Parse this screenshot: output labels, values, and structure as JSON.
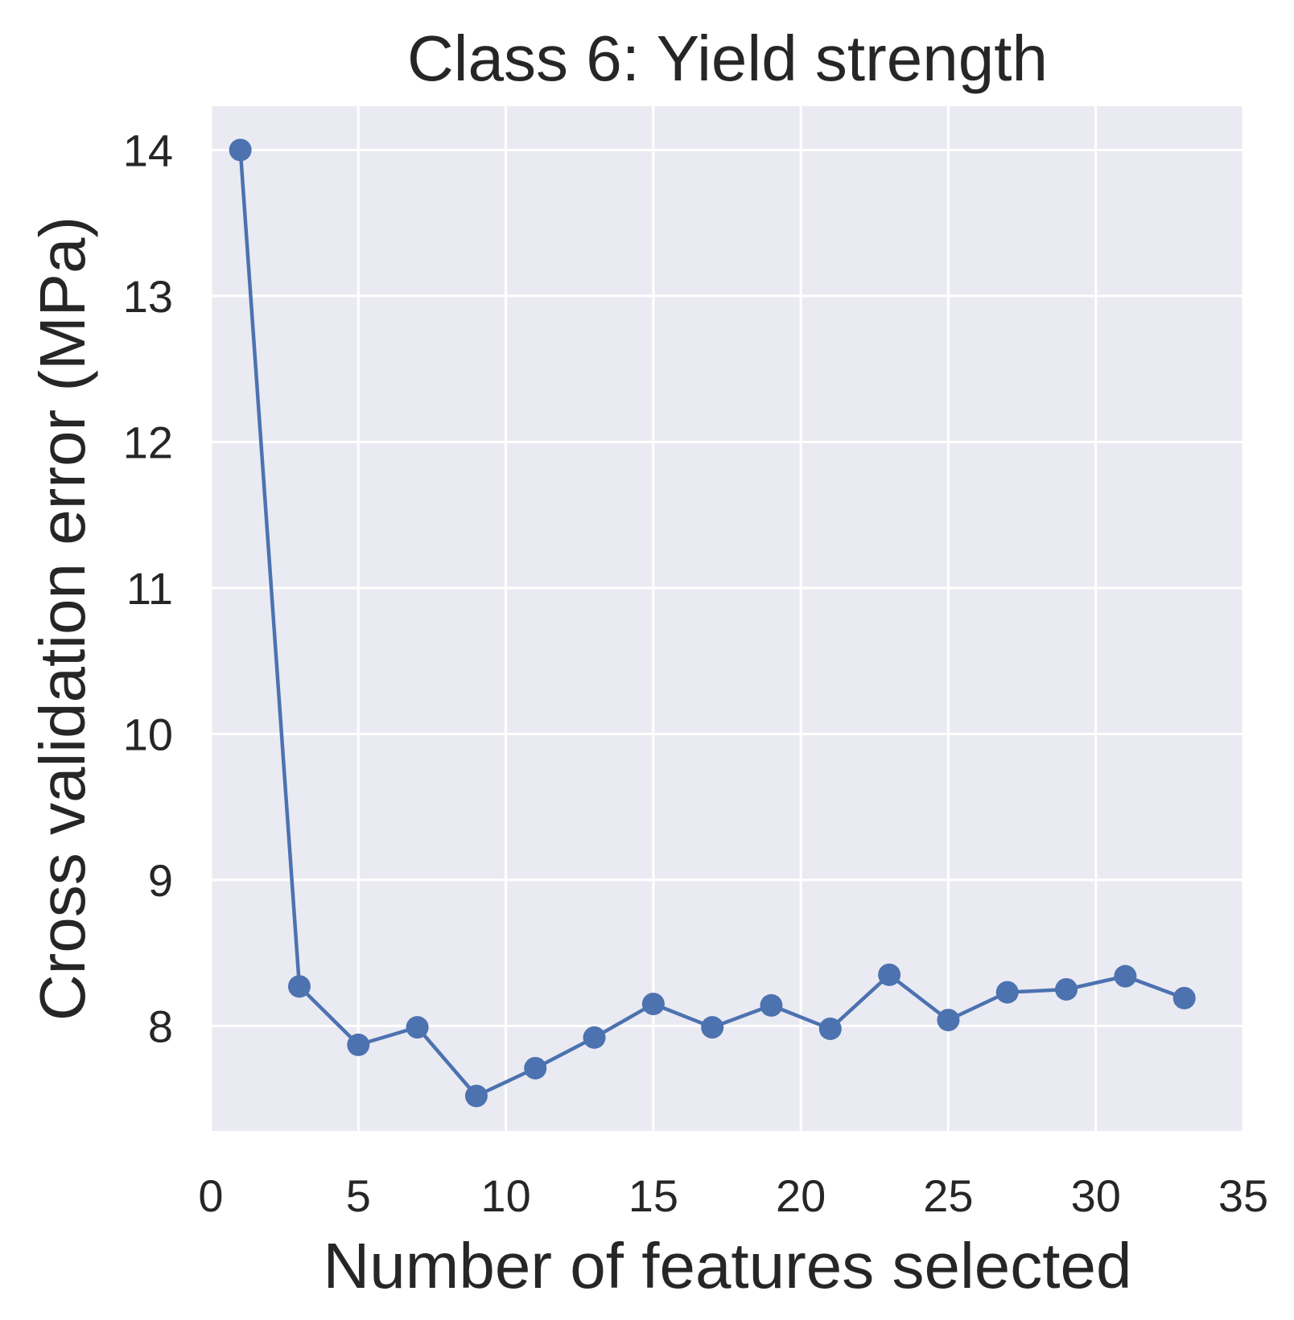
{
  "chart_data": {
    "type": "line",
    "title": "Class 6: Yield strength",
    "xlabel": "Number of features selected",
    "ylabel": "Cross validation error (MPa)",
    "xlim": [
      0,
      35
    ],
    "ylim": [
      7.28,
      14.3
    ],
    "xticks": [
      0,
      5,
      10,
      15,
      20,
      25,
      30,
      35
    ],
    "yticks": [
      8,
      9,
      10,
      11,
      12,
      13,
      14
    ],
    "grid": true,
    "background_color": "#eaeaf2",
    "line_color": "#4c72b0",
    "series": [
      {
        "x": [
          1,
          3,
          5,
          7,
          9,
          11,
          13,
          15,
          17,
          19,
          21,
          23,
          25,
          27,
          29,
          31,
          33
        ],
        "y": [
          14.0,
          8.27,
          7.87,
          7.99,
          7.52,
          7.71,
          7.92,
          8.15,
          7.99,
          8.14,
          7.98,
          8.35,
          8.04,
          8.23,
          8.25,
          8.34,
          8.19
        ]
      }
    ]
  }
}
